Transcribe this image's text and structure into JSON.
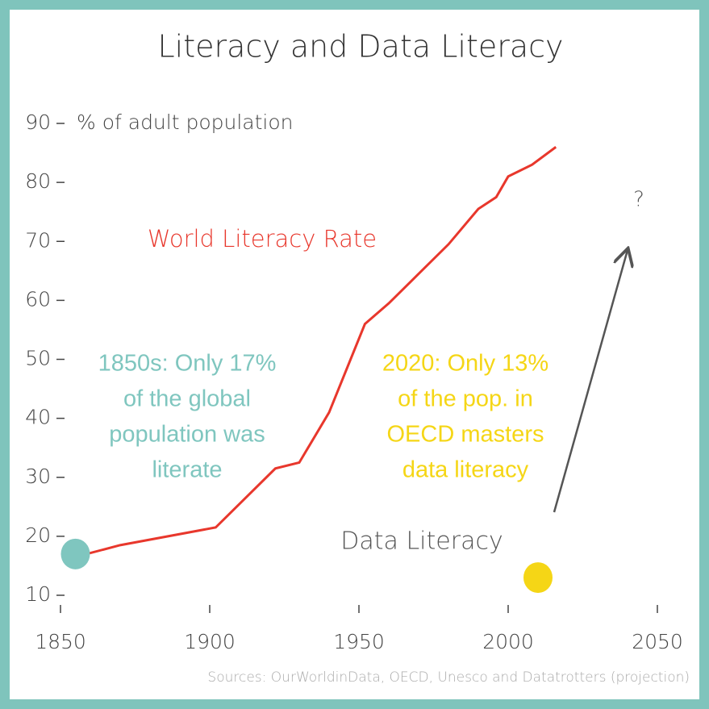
{
  "chart_data": {
    "type": "line",
    "title": "Literacy and Data Literacy",
    "y_label": "% of adult population",
    "source": "Sources: OurWorldinData, OECD, Unesco and Datatrotters (projection)",
    "xlim": [
      1850,
      2050
    ],
    "xticks": [
      1850,
      1900,
      1950,
      2000,
      2050
    ],
    "ylim": [
      10,
      90
    ],
    "yticks": [
      10,
      20,
      30,
      40,
      50,
      60,
      70,
      80,
      90
    ],
    "series": [
      {
        "name": "World Literacy Rate",
        "color": "#e8372c",
        "x": [
          1855,
          1870,
          1902,
          1922,
          1930,
          1940,
          1952,
          1960,
          1970,
          1980,
          1990,
          1996,
          2000,
          2008,
          2016
        ],
        "values": [
          16.5,
          18.5,
          21.5,
          31.5,
          32.5,
          41,
          56,
          59.5,
          64.5,
          69.5,
          75.5,
          77.5,
          81,
          83,
          86
        ]
      }
    ],
    "points": [
      {
        "x": 1855,
        "y": 17,
        "color": "#7fc6bf"
      },
      {
        "x": 2010,
        "y": 13,
        "color": "#f5d616"
      }
    ],
    "annotations": [
      {
        "lines": [
          "1850s: Only 17%",
          "of the global",
          "population was",
          "literate"
        ],
        "color": "#7fc6bf"
      },
      {
        "lines": [
          "2020: Only 13%",
          "of the pop. in",
          "OECD masters",
          "data literacy"
        ],
        "color": "#f5d616"
      },
      {
        "lines": [
          "Data Literacy"
        ],
        "color": "#555555"
      },
      {
        "lines": [
          "?"
        ],
        "color": "#555555"
      }
    ]
  }
}
